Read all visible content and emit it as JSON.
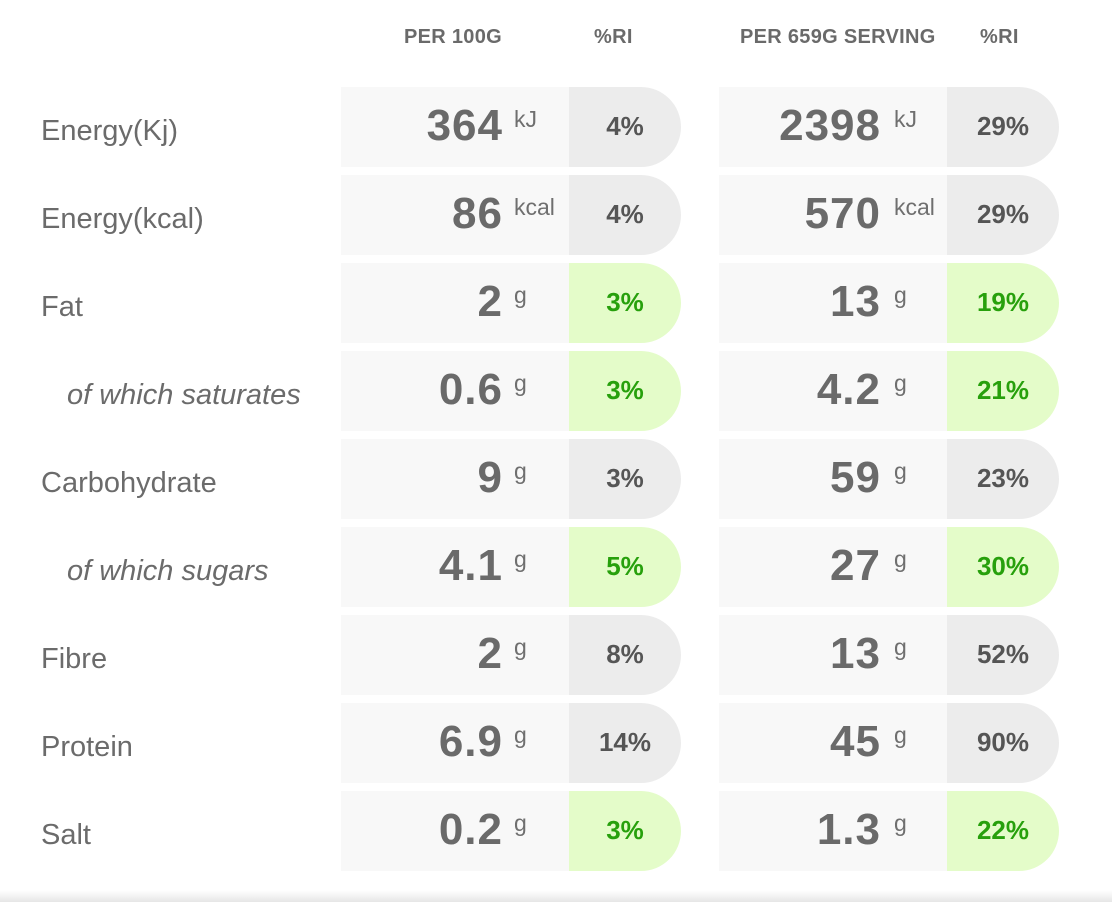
{
  "headers": {
    "per100": "PER 100G",
    "ri1": "%RI",
    "perServing": "PER 659G SERVING",
    "ri2": "%RI"
  },
  "colors": {
    "cell_bg": "#f8f8f8",
    "ri_neutral_bg": "#ececec",
    "ri_good_bg": "#e4fcc9",
    "ri_good_text": "#27a00c"
  },
  "rows": [
    {
      "label": "Energy(Kj)",
      "sub": false,
      "v100": "364",
      "u100": "kJ",
      "ri100": "4%",
      "g100": false,
      "vs": "2398",
      "us": "kJ",
      "ris": "29%",
      "gs": false
    },
    {
      "label": "Energy(kcal)",
      "sub": false,
      "v100": "86",
      "u100": "kcal",
      "ri100": "4%",
      "g100": false,
      "vs": "570",
      "us": "kcal",
      "ris": "29%",
      "gs": false
    },
    {
      "label": "Fat",
      "sub": false,
      "v100": "2",
      "u100": "g",
      "ri100": "3%",
      "g100": true,
      "vs": "13",
      "us": "g",
      "ris": "19%",
      "gs": true
    },
    {
      "label": "of which saturates",
      "sub": true,
      "v100": "0.6",
      "u100": "g",
      "ri100": "3%",
      "g100": true,
      "vs": "4.2",
      "us": "g",
      "ris": "21%",
      "gs": true
    },
    {
      "label": "Carbohydrate",
      "sub": false,
      "v100": "9",
      "u100": "g",
      "ri100": "3%",
      "g100": false,
      "vs": "59",
      "us": "g",
      "ris": "23%",
      "gs": false
    },
    {
      "label": "of which sugars",
      "sub": true,
      "v100": "4.1",
      "u100": "g",
      "ri100": "5%",
      "g100": true,
      "vs": "27",
      "us": "g",
      "ris": "30%",
      "gs": true
    },
    {
      "label": "Fibre",
      "sub": false,
      "v100": "2",
      "u100": "g",
      "ri100": "8%",
      "g100": false,
      "vs": "13",
      "us": "g",
      "ris": "52%",
      "gs": false
    },
    {
      "label": "Protein",
      "sub": false,
      "v100": "6.9",
      "u100": "g",
      "ri100": "14%",
      "g100": false,
      "vs": "45",
      "us": "g",
      "ris": "90%",
      "gs": false
    },
    {
      "label": "Salt",
      "sub": false,
      "v100": "0.2",
      "u100": "g",
      "ri100": "3%",
      "g100": true,
      "vs": "1.3",
      "us": "g",
      "ris": "22%",
      "gs": true
    }
  ]
}
